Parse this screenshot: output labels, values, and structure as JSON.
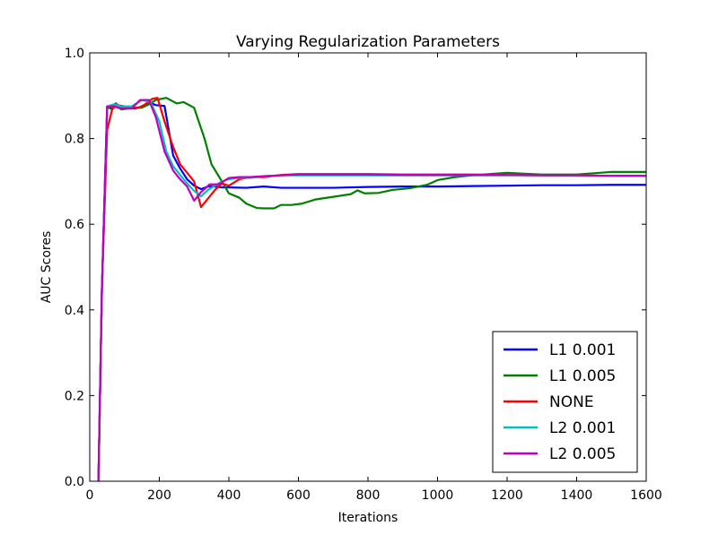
{
  "chart_data": {
    "type": "line",
    "title": "Varying Regularization Parameters",
    "xlabel": "Iterations",
    "ylabel": "AUC Scores",
    "xlim": [
      0,
      1600
    ],
    "ylim": [
      0.0,
      1.0
    ],
    "xticks": [
      "0",
      "200",
      "400",
      "600",
      "800",
      "1000",
      "1200",
      "1400",
      "1600"
    ],
    "yticks": [
      "0.0",
      "0.2",
      "0.4",
      "0.6",
      "0.8",
      "1.0"
    ],
    "grid": false,
    "legend_position": "lower-right",
    "series": [
      {
        "name": "L1 0.001",
        "color": "#0000ff",
        "points": [
          [
            25,
            0.0
          ],
          [
            35,
            0.45
          ],
          [
            50,
            0.875
          ],
          [
            65,
            0.868
          ],
          [
            75,
            0.882
          ],
          [
            90,
            0.872
          ],
          [
            110,
            0.872
          ],
          [
            130,
            0.87
          ],
          [
            150,
            0.875
          ],
          [
            170,
            0.885
          ],
          [
            190,
            0.878
          ],
          [
            215,
            0.876
          ],
          [
            240,
            0.76
          ],
          [
            260,
            0.73
          ],
          [
            280,
            0.705
          ],
          [
            300,
            0.69
          ],
          [
            320,
            0.682
          ],
          [
            340,
            0.688
          ],
          [
            360,
            0.688
          ],
          [
            380,
            0.686
          ],
          [
            400,
            0.686
          ],
          [
            450,
            0.685
          ],
          [
            500,
            0.688
          ],
          [
            550,
            0.685
          ],
          [
            600,
            0.685
          ],
          [
            700,
            0.685
          ],
          [
            800,
            0.687
          ],
          [
            900,
            0.688
          ],
          [
            1000,
            0.688
          ],
          [
            1100,
            0.689
          ],
          [
            1200,
            0.69
          ],
          [
            1300,
            0.691
          ],
          [
            1400,
            0.691
          ],
          [
            1500,
            0.692
          ],
          [
            1600,
            0.692
          ]
        ]
      },
      {
        "name": "L1 0.005",
        "color": "#008000",
        "points": [
          [
            25,
            0.0
          ],
          [
            35,
            0.45
          ],
          [
            50,
            0.87
          ],
          [
            65,
            0.875
          ],
          [
            75,
            0.882
          ],
          [
            90,
            0.868
          ],
          [
            110,
            0.87
          ],
          [
            130,
            0.872
          ],
          [
            150,
            0.872
          ],
          [
            170,
            0.88
          ],
          [
            190,
            0.89
          ],
          [
            220,
            0.895
          ],
          [
            250,
            0.882
          ],
          [
            270,
            0.885
          ],
          [
            300,
            0.872
          ],
          [
            330,
            0.8
          ],
          [
            350,
            0.74
          ],
          [
            380,
            0.7
          ],
          [
            400,
            0.672
          ],
          [
            430,
            0.662
          ],
          [
            450,
            0.648
          ],
          [
            480,
            0.638
          ],
          [
            500,
            0.637
          ],
          [
            530,
            0.637
          ],
          [
            550,
            0.645
          ],
          [
            580,
            0.645
          ],
          [
            610,
            0.648
          ],
          [
            650,
            0.658
          ],
          [
            700,
            0.664
          ],
          [
            750,
            0.67
          ],
          [
            770,
            0.679
          ],
          [
            790,
            0.672
          ],
          [
            830,
            0.673
          ],
          [
            870,
            0.68
          ],
          [
            920,
            0.684
          ],
          [
            970,
            0.692
          ],
          [
            1000,
            0.703
          ],
          [
            1050,
            0.71
          ],
          [
            1100,
            0.714
          ],
          [
            1150,
            0.717
          ],
          [
            1200,
            0.72
          ],
          [
            1250,
            0.718
          ],
          [
            1300,
            0.716
          ],
          [
            1350,
            0.716
          ],
          [
            1400,
            0.716
          ],
          [
            1450,
            0.719
          ],
          [
            1500,
            0.722
          ],
          [
            1550,
            0.722
          ],
          [
            1600,
            0.722
          ]
        ]
      },
      {
        "name": "NONE",
        "color": "#ff0000",
        "points": [
          [
            25,
            0.0
          ],
          [
            35,
            0.45
          ],
          [
            50,
            0.82
          ],
          [
            65,
            0.87
          ],
          [
            80,
            0.878
          ],
          [
            100,
            0.875
          ],
          [
            120,
            0.872
          ],
          [
            140,
            0.872
          ],
          [
            160,
            0.88
          ],
          [
            180,
            0.893
          ],
          [
            195,
            0.895
          ],
          [
            215,
            0.84
          ],
          [
            240,
            0.78
          ],
          [
            260,
            0.74
          ],
          [
            280,
            0.72
          ],
          [
            300,
            0.7
          ],
          [
            320,
            0.64
          ],
          [
            340,
            0.66
          ],
          [
            360,
            0.68
          ],
          [
            380,
            0.695
          ],
          [
            400,
            0.69
          ],
          [
            430,
            0.705
          ],
          [
            460,
            0.71
          ],
          [
            500,
            0.71
          ],
          [
            550,
            0.715
          ],
          [
            600,
            0.717
          ],
          [
            700,
            0.717
          ],
          [
            800,
            0.717
          ],
          [
            900,
            0.716
          ],
          [
            1000,
            0.716
          ],
          [
            1100,
            0.716
          ],
          [
            1200,
            0.715
          ],
          [
            1300,
            0.714
          ],
          [
            1400,
            0.714
          ],
          [
            1500,
            0.713
          ],
          [
            1600,
            0.713
          ]
        ]
      },
      {
        "name": "L2 0.001",
        "color": "#00bfbf",
        "points": [
          [
            25,
            0.0
          ],
          [
            35,
            0.45
          ],
          [
            50,
            0.875
          ],
          [
            70,
            0.88
          ],
          [
            90,
            0.875
          ],
          [
            120,
            0.875
          ],
          [
            150,
            0.89
          ],
          [
            175,
            0.885
          ],
          [
            200,
            0.84
          ],
          [
            220,
            0.77
          ],
          [
            240,
            0.735
          ],
          [
            260,
            0.715
          ],
          [
            280,
            0.695
          ],
          [
            300,
            0.678
          ],
          [
            320,
            0.665
          ],
          [
            340,
            0.68
          ],
          [
            360,
            0.69
          ],
          [
            380,
            0.7
          ],
          [
            400,
            0.705
          ],
          [
            430,
            0.708
          ],
          [
            460,
            0.708
          ],
          [
            500,
            0.712
          ],
          [
            550,
            0.714
          ],
          [
            600,
            0.714
          ],
          [
            700,
            0.714
          ],
          [
            800,
            0.714
          ],
          [
            900,
            0.714
          ],
          [
            1000,
            0.714
          ],
          [
            1100,
            0.714
          ],
          [
            1200,
            0.714
          ],
          [
            1300,
            0.714
          ],
          [
            1400,
            0.713
          ],
          [
            1500,
            0.713
          ],
          [
            1600,
            0.713
          ]
        ]
      },
      {
        "name": "L2 0.005",
        "color": "#bf00bf",
        "points": [
          [
            25,
            0.0
          ],
          [
            35,
            0.45
          ],
          [
            50,
            0.875
          ],
          [
            70,
            0.875
          ],
          [
            90,
            0.87
          ],
          [
            120,
            0.87
          ],
          [
            145,
            0.89
          ],
          [
            170,
            0.89
          ],
          [
            190,
            0.85
          ],
          [
            215,
            0.77
          ],
          [
            240,
            0.725
          ],
          [
            260,
            0.705
          ],
          [
            280,
            0.688
          ],
          [
            300,
            0.655
          ],
          [
            320,
            0.675
          ],
          [
            345,
            0.693
          ],
          [
            370,
            0.693
          ],
          [
            400,
            0.708
          ],
          [
            430,
            0.71
          ],
          [
            460,
            0.71
          ],
          [
            500,
            0.712
          ],
          [
            550,
            0.714
          ],
          [
            600,
            0.716
          ],
          [
            700,
            0.716
          ],
          [
            800,
            0.716
          ],
          [
            900,
            0.715
          ],
          [
            1000,
            0.715
          ],
          [
            1100,
            0.715
          ],
          [
            1200,
            0.715
          ],
          [
            1300,
            0.714
          ],
          [
            1400,
            0.714
          ],
          [
            1500,
            0.713
          ],
          [
            1600,
            0.713
          ]
        ]
      }
    ]
  }
}
